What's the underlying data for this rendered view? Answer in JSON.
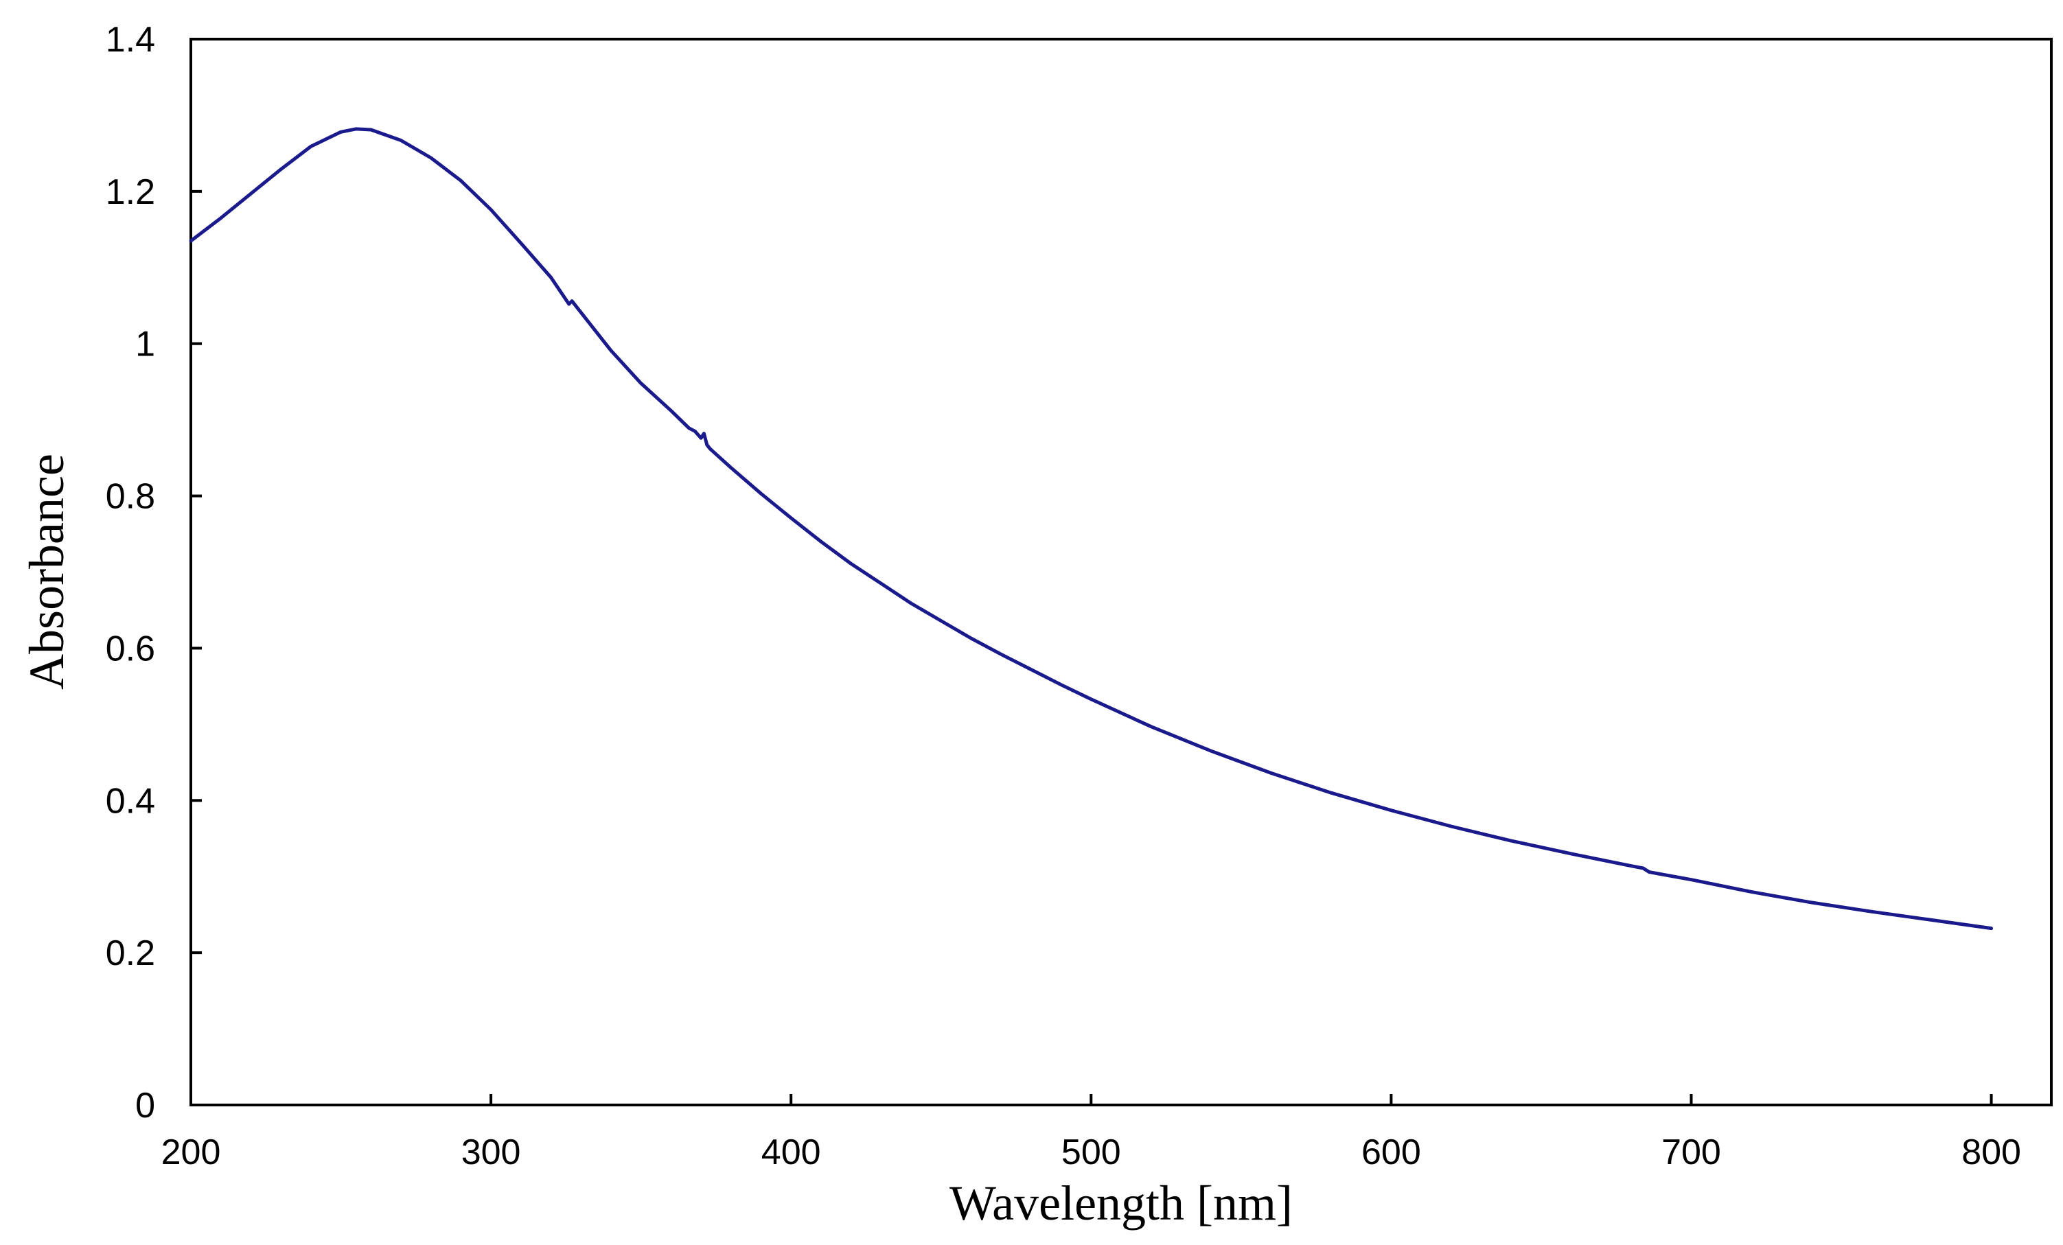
{
  "chart_data": {
    "type": "line",
    "title": "",
    "xlabel": "Wavelength [nm]",
    "ylabel": "Absorbance",
    "xlim": [
      200,
      820
    ],
    "ylim": [
      0,
      1.4
    ],
    "xticks": [
      200,
      300,
      400,
      500,
      600,
      700,
      800
    ],
    "xtick_labels": [
      "200",
      "300",
      "400",
      "500",
      "600",
      "700",
      "800"
    ],
    "yticks": [
      0,
      0.2,
      0.4,
      0.6,
      0.8,
      1.0,
      1.2,
      1.4
    ],
    "ytick_labels": [
      "0",
      "0.2",
      "0.4",
      "0.6",
      "0.8",
      "1",
      "1.2",
      "1.4"
    ],
    "grid": false,
    "legend": "none",
    "line_color": "#1a1a8c",
    "series": [
      {
        "name": "Absorbance",
        "x": [
          200,
          210,
          220,
          230,
          240,
          250,
          255,
          260,
          270,
          280,
          290,
          300,
          310,
          320,
          326,
          327,
          330,
          340,
          350,
          360,
          366,
          368,
          370,
          371,
          372,
          373,
          380,
          390,
          400,
          410,
          420,
          430,
          440,
          450,
          460,
          470,
          480,
          490,
          500,
          520,
          540,
          560,
          580,
          600,
          620,
          640,
          660,
          680,
          684,
          686,
          700,
          720,
          740,
          760,
          780,
          800
        ],
        "y": [
          1.135,
          1.165,
          1.197,
          1.229,
          1.259,
          1.278,
          1.282,
          1.281,
          1.267,
          1.244,
          1.214,
          1.176,
          1.132,
          1.087,
          1.052,
          1.056,
          1.041,
          0.991,
          0.948,
          0.912,
          0.889,
          0.885,
          0.876,
          0.882,
          0.867,
          0.862,
          0.837,
          0.803,
          0.771,
          0.74,
          0.711,
          0.685,
          0.659,
          0.636,
          0.613,
          0.592,
          0.572,
          0.552,
          0.533,
          0.497,
          0.465,
          0.436,
          0.41,
          0.387,
          0.366,
          0.347,
          0.33,
          0.314,
          0.311,
          0.306,
          0.296,
          0.28,
          0.266,
          0.254,
          0.243,
          0.232
        ]
      }
    ]
  }
}
